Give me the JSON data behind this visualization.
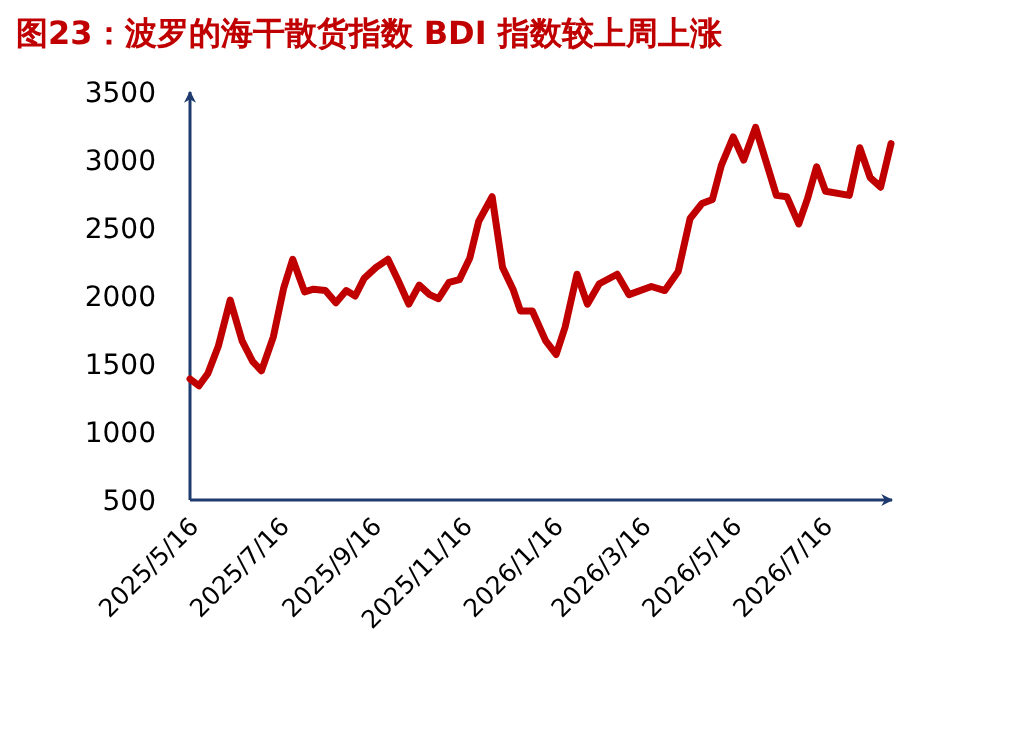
{
  "chart_data": {
    "type": "line",
    "title": "图23：波罗的海干散货指数 BDI 指数较上周上涨",
    "x": [
      "2025-05-16",
      "2025-05-22",
      "2025-05-28",
      "2025-06-04",
      "2025-06-12",
      "2025-06-20",
      "2025-06-27",
      "2025-07-03",
      "2025-07-11",
      "2025-07-18",
      "2025-07-24",
      "2025-08-01",
      "2025-08-07",
      "2025-08-15",
      "2025-08-22",
      "2025-08-29",
      "2025-09-04",
      "2025-09-10",
      "2025-09-18",
      "2025-09-26",
      "2025-10-03",
      "2025-10-10",
      "2025-10-17",
      "2025-10-24",
      "2025-10-30",
      "2025-11-06",
      "2025-11-13",
      "2025-11-20",
      "2025-11-26",
      "2025-12-05",
      "2025-12-12",
      "2025-12-19",
      "2025-12-24",
      "2026-01-01",
      "2026-01-10",
      "2026-01-17",
      "2026-01-23",
      "2026-01-31",
      "2026-02-07",
      "2026-02-15",
      "2026-02-27",
      "2026-03-07",
      "2026-03-22",
      "2026-03-31",
      "2026-04-09",
      "2026-04-17",
      "2026-04-25",
      "2026-05-02",
      "2026-05-08",
      "2026-05-16",
      "2026-05-23",
      "2026-05-31",
      "2026-06-07",
      "2026-06-14",
      "2026-06-21",
      "2026-06-29",
      "2026-07-05",
      "2026-07-11",
      "2026-07-17",
      "2026-08-02",
      "2026-08-09",
      "2026-08-16",
      "2026-08-23",
      "2026-08-30"
    ],
    "series": [
      {
        "color": "#c00000",
        "values": [
          1390,
          1340,
          1430,
          1630,
          1970,
          1670,
          1520,
          1450,
          1700,
          2060,
          2270,
          2030,
          2050,
          2040,
          1950,
          2040,
          2000,
          2130,
          2210,
          2270,
          2110,
          1940,
          2080,
          2010,
          1980,
          2100,
          2120,
          2280,
          2550,
          2730,
          2210,
          2050,
          1890,
          1890,
          1670,
          1570,
          1770,
          2160,
          1940,
          2090,
          2160,
          2010,
          2070,
          2040,
          2180,
          2570,
          2680,
          2710,
          2960,
          3170,
          3000,
          3240,
          2990,
          2740,
          2730,
          2530,
          2720,
          2950,
          2770,
          2740,
          3090,
          2870,
          2800,
          3120
        ]
      }
    ],
    "xlim": [
      "2025-05-16",
      "2026-09-01"
    ],
    "xticks": [
      {
        "value": "2025-05-16",
        "label": "2025/5/16"
      },
      {
        "value": "2025-07-16",
        "label": "2025/7/16"
      },
      {
        "value": "2025-09-16",
        "label": "2025/9/16"
      },
      {
        "value": "2025-11-16",
        "label": "2025/11/16"
      },
      {
        "value": "2026-01-16",
        "label": "2026/1/16"
      },
      {
        "value": "2026-03-16",
        "label": "2026/3/16"
      },
      {
        "value": "2026-05-16",
        "label": "2026/5/16"
      },
      {
        "value": "2026-07-16",
        "label": "2026/7/16"
      }
    ],
    "ylim": [
      500,
      3500
    ],
    "yticks": [
      500,
      1000,
      1500,
      2000,
      2500,
      3000,
      3500
    ],
    "grid": false,
    "line_style": "solid",
    "marker": "none"
  }
}
